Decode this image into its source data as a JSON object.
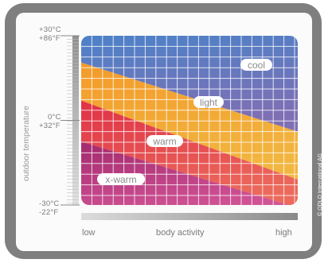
{
  "chart_data": {
    "type": "area",
    "title": "",
    "ylabel": "outdoor temperature",
    "xlabel": "body activity",
    "x_tick_labels": {
      "low": "low",
      "high": "high"
    },
    "x_range": [
      0,
      1
    ],
    "y_range_celsius": [
      -30,
      30
    ],
    "y_ticks": [
      {
        "celsius": 30,
        "label_c": "+30°C",
        "label_f": "+86°F"
      },
      {
        "celsius": 0,
        "label_c": "0°C",
        "label_f": "+32°F"
      },
      {
        "celsius": -30,
        "label_c": "-30°C",
        "label_f": "-22°F"
      }
    ],
    "grid": true,
    "zones_order_top_to_bottom": [
      "cool",
      "light",
      "warm",
      "x-warm"
    ],
    "boundaries": [
      {
        "name": "cool/light",
        "x": [
          0,
          1
        ],
        "y_celsius": [
          20.5,
          -4
        ]
      },
      {
        "name": "light/warm",
        "x": [
          0,
          1
        ],
        "y_celsius": [
          7,
          -21
        ]
      },
      {
        "name": "warm/x-warm",
        "x": [
          0,
          1
        ],
        "y_celsius": [
          -7.5,
          -31
        ]
      }
    ],
    "series": [
      {
        "name": "cool",
        "color_top": "#4d82c8",
        "color_bottom": "#7f6fb4"
      },
      {
        "name": "light",
        "color_top": "#f39a2a",
        "color_bottom": "#f2b640"
      },
      {
        "name": "warm",
        "color_top": "#e03146",
        "color_bottom": "#eb6a5c"
      },
      {
        "name": "x-warm",
        "color_top": "#a32a6e",
        "color_bottom": "#dc5ea0"
      }
    ],
    "legend_placement": "inside-zones"
  },
  "copyright": "© ODLO International AG",
  "colors": {
    "frame": "#7f7f7f",
    "panel": "#fbfbfb",
    "tick_text": "#7a7a7a",
    "gradient_bar_start": "#dcdcdc",
    "gradient_bar_end": "#8a8a8a"
  }
}
